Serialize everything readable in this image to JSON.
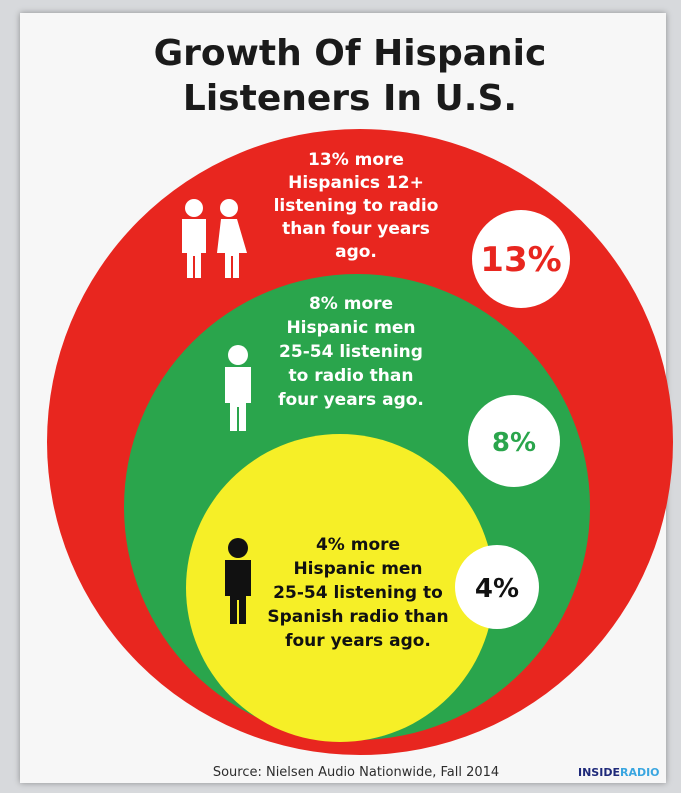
{
  "title": {
    "line1": "Growth Of Hispanic",
    "line2": "Listeners In U.S."
  },
  "colors": {
    "outer": "#e8261f",
    "middle": "#2aa54c",
    "inner": "#f6ef27",
    "badge_fill": "#ffffff",
    "outer_text": "#e8261f",
    "middle_text": "#2aa54c",
    "inner_text": "#111111",
    "source_text": "#2d2d2d",
    "logo_a": "#1f2a7a",
    "logo_b": "#3aa6e0"
  },
  "rings": [
    {
      "id": "outer",
      "icon": "man-and-woman-icon",
      "text_lines": [
        "13% more",
        "Hispanics 12+",
        "listening to radio",
        "than four years",
        "ago."
      ],
      "badge": "13%"
    },
    {
      "id": "middle",
      "icon": "man-icon",
      "text_lines": [
        "8% more",
        "Hispanic men",
        "25-54 listening",
        "to radio than",
        "four years ago."
      ],
      "badge": "8%"
    },
    {
      "id": "inner",
      "icon": "man-icon",
      "text_lines": [
        "4% more",
        "Hispanic men",
        "25-54 listening to",
        "Spanish radio than",
        "four years ago."
      ],
      "badge": "4%"
    }
  ],
  "source": "Source: Nielsen Audio Nationwide, Fall 2014",
  "logo": {
    "part1": "INSIDE",
    "part2": "RADIO"
  }
}
